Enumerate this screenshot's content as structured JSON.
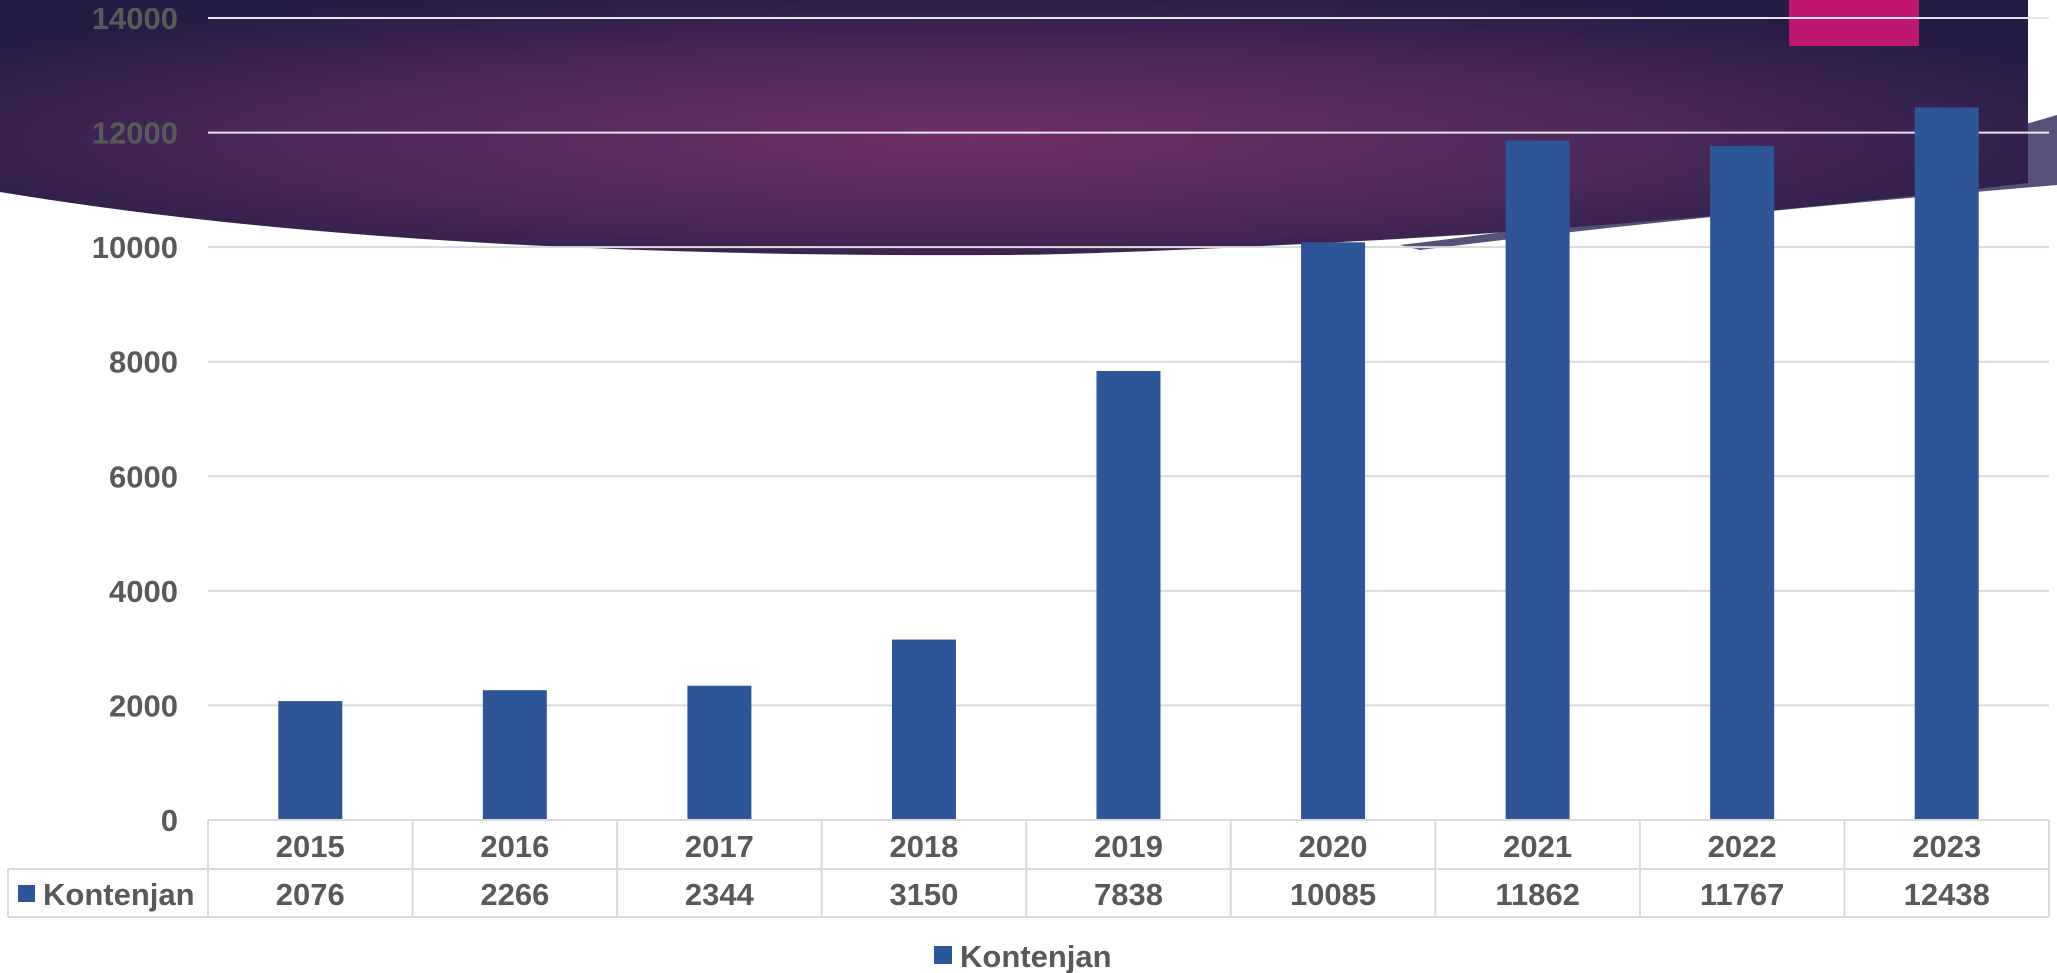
{
  "colors": {
    "bar": "#2c5697",
    "accent_magenta": "#c0186f",
    "banner_dark": "#2a1f48",
    "banner_mid": "#6b2e64",
    "grid": "#d9d9d9",
    "text": "#595959"
  },
  "chart_data": {
    "type": "bar",
    "title": "",
    "xlabel": "",
    "ylabel": "",
    "categories": [
      "2015",
      "2016",
      "2017",
      "2018",
      "2019",
      "2020",
      "2021",
      "2022",
      "2023"
    ],
    "series": [
      {
        "name": "Kontenjan",
        "values": [
          2076,
          2266,
          2344,
          3150,
          7838,
          10085,
          11862,
          11767,
          12438
        ]
      }
    ],
    "ylim": [
      0,
      14000
    ],
    "yticks": [
      "0",
      "2000",
      "4000",
      "6000",
      "8000",
      "10000",
      "12000",
      "14000"
    ],
    "grid": true,
    "legend": {
      "position": "bottom",
      "entries": [
        "Kontenjan"
      ]
    },
    "data_table": {
      "row_label": "Kontenjan",
      "values": [
        "2076",
        "2266",
        "2344",
        "3150",
        "7838",
        "10085",
        "11862",
        "11767",
        "12438"
      ]
    }
  }
}
